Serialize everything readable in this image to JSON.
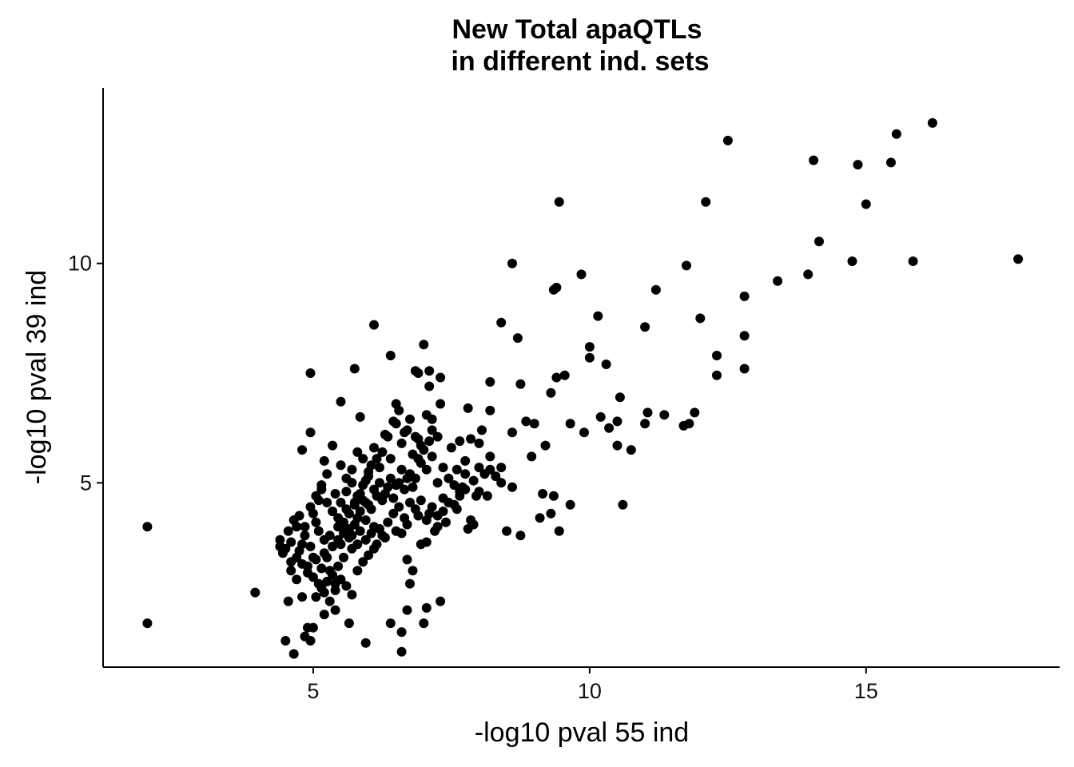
{
  "chart_data": {
    "type": "scatter",
    "title_line1": "New Total apaQTLs",
    "title_line2": "in different ind. sets",
    "xlabel": "-log10 pval 55 ind",
    "ylabel": "-log10 pval 39 ind",
    "xlim": [
      1.2,
      18.5
    ],
    "ylim": [
      0.8,
      14.0
    ],
    "xticks": [
      5,
      10,
      15
    ],
    "yticks": [
      5,
      10
    ],
    "grid": false,
    "point_color": "#000000",
    "points": [
      [
        2.0,
        4.0
      ],
      [
        2.0,
        1.8
      ],
      [
        3.95,
        2.5
      ],
      [
        4.4,
        3.7
      ],
      [
        4.5,
        3.5
      ],
      [
        4.6,
        3.2
      ],
      [
        4.7,
        4.0
      ],
      [
        4.8,
        3.6
      ],
      [
        4.55,
        2.3
      ],
      [
        4.7,
        2.8
      ],
      [
        4.8,
        2.4
      ],
      [
        4.9,
        3.1
      ],
      [
        5.0,
        3.3
      ],
      [
        5.05,
        4.1
      ],
      [
        5.1,
        3.9
      ],
      [
        5.2,
        3.4
      ],
      [
        5.3,
        3.0
      ],
      [
        5.4,
        2.7
      ],
      [
        5.5,
        3.6
      ],
      [
        5.6,
        4.4
      ],
      [
        5.7,
        3.8
      ],
      [
        5.8,
        4.2
      ],
      [
        5.9,
        4.6
      ],
      [
        6.0,
        4.5
      ],
      [
        4.5,
        1.4
      ],
      [
        4.65,
        1.1
      ],
      [
        4.85,
        1.5
      ],
      [
        4.95,
        1.4
      ],
      [
        4.9,
        1.7
      ],
      [
        5.0,
        1.7
      ],
      [
        5.2,
        2.0
      ],
      [
        5.4,
        2.1
      ],
      [
        5.65,
        1.8
      ],
      [
        5.95,
        1.35
      ],
      [
        6.4,
        1.8
      ],
      [
        6.6,
        1.6
      ],
      [
        6.6,
        1.15
      ],
      [
        6.7,
        2.1
      ],
      [
        7.0,
        1.8
      ],
      [
        7.05,
        2.15
      ],
      [
        7.3,
        2.3
      ],
      [
        4.95,
        7.5
      ],
      [
        4.95,
        6.15
      ],
      [
        4.8,
        5.75
      ],
      [
        5.5,
        6.85
      ],
      [
        5.75,
        7.6
      ],
      [
        5.85,
        6.5
      ],
      [
        6.1,
        8.6
      ],
      [
        6.4,
        7.9
      ],
      [
        6.5,
        6.8
      ],
      [
        6.9,
        7.5
      ],
      [
        6.85,
        7.55
      ],
      [
        7.1,
        7.55
      ],
      [
        7.0,
        8.15
      ],
      [
        7.3,
        7.4
      ],
      [
        7.1,
        7.2
      ],
      [
        7.3,
        6.8
      ],
      [
        7.15,
        6.45
      ],
      [
        7.5,
        5.8
      ],
      [
        7.8,
        6.7
      ],
      [
        8.05,
        6.2
      ],
      [
        8.2,
        6.65
      ],
      [
        8.2,
        7.3
      ],
      [
        8.4,
        8.65
      ],
      [
        8.6,
        10.0
      ],
      [
        8.7,
        8.3
      ],
      [
        8.75,
        7.25
      ],
      [
        8.6,
        6.15
      ],
      [
        8.85,
        6.4
      ],
      [
        9.0,
        6.35
      ],
      [
        9.2,
        5.85
      ],
      [
        8.95,
        5.6
      ],
      [
        9.4,
        9.45
      ],
      [
        9.35,
        9.4
      ],
      [
        9.45,
        11.4
      ],
      [
        9.3,
        7.05
      ],
      [
        9.55,
        7.45
      ],
      [
        9.4,
        7.4
      ],
      [
        9.65,
        6.35
      ],
      [
        9.85,
        9.75
      ],
      [
        9.9,
        6.15
      ],
      [
        10.0,
        8.1
      ],
      [
        10.0,
        7.85
      ],
      [
        10.15,
        8.8
      ],
      [
        10.2,
        6.5
      ],
      [
        10.3,
        7.7
      ],
      [
        10.35,
        6.25
      ],
      [
        10.5,
        6.4
      ],
      [
        10.5,
        5.85
      ],
      [
        10.55,
        6.95
      ],
      [
        10.6,
        4.5
      ],
      [
        10.75,
        5.75
      ],
      [
        11.0,
        8.55
      ],
      [
        11.0,
        6.35
      ],
      [
        11.05,
        6.6
      ],
      [
        11.2,
        9.4
      ],
      [
        11.35,
        6.55
      ],
      [
        11.7,
        6.3
      ],
      [
        11.8,
        6.35
      ],
      [
        11.75,
        9.95
      ],
      [
        11.9,
        6.6
      ],
      [
        12.0,
        8.75
      ],
      [
        12.1,
        11.4
      ],
      [
        12.3,
        7.9
      ],
      [
        12.3,
        7.45
      ],
      [
        12.5,
        12.8
      ],
      [
        12.8,
        9.25
      ],
      [
        12.8,
        8.35
      ],
      [
        12.8,
        7.6
      ],
      [
        13.4,
        9.6
      ],
      [
        13.95,
        9.75
      ],
      [
        14.05,
        12.35
      ],
      [
        14.15,
        10.5
      ],
      [
        14.75,
        10.05
      ],
      [
        14.85,
        12.25
      ],
      [
        15.0,
        11.35
      ],
      [
        15.45,
        12.3
      ],
      [
        15.55,
        12.95
      ],
      [
        15.85,
        10.05
      ],
      [
        16.2,
        13.2
      ],
      [
        17.75,
        10.1
      ],
      [
        8.0,
        4.8
      ],
      [
        8.15,
        4.7
      ],
      [
        8.4,
        5.0
      ],
      [
        8.6,
        4.9
      ],
      [
        8.5,
        3.9
      ],
      [
        8.75,
        3.8
      ],
      [
        9.1,
        4.2
      ],
      [
        9.15,
        4.75
      ],
      [
        9.3,
        4.3
      ],
      [
        9.45,
        3.9
      ],
      [
        9.65,
        4.5
      ],
      [
        9.35,
        4.7
      ],
      [
        8.1,
        5.2
      ],
      [
        8.2,
        5.3
      ],
      [
        8.0,
        5.9
      ],
      [
        7.85,
        6.0
      ],
      [
        7.75,
        5.5
      ],
      [
        7.6,
        5.3
      ],
      [
        7.9,
        5.05
      ],
      [
        7.95,
        4.7
      ],
      [
        7.85,
        4.15
      ],
      [
        7.9,
        4.05
      ],
      [
        7.6,
        4.4
      ],
      [
        7.35,
        4.35
      ],
      [
        7.25,
        4.0
      ],
      [
        7.1,
        4.3
      ],
      [
        6.9,
        4.25
      ],
      [
        6.7,
        4.05
      ],
      [
        6.6,
        3.85
      ],
      [
        6.5,
        3.9
      ],
      [
        6.3,
        3.75
      ],
      [
        6.2,
        3.95
      ],
      [
        6.1,
        4.0
      ],
      [
        5.95,
        3.7
      ],
      [
        5.8,
        3.6
      ],
      [
        5.7,
        3.5
      ],
      [
        5.55,
        3.3
      ],
      [
        5.45,
        3.1
      ],
      [
        5.35,
        2.9
      ],
      [
        5.25,
        2.75
      ],
      [
        5.15,
        2.6
      ],
      [
        5.05,
        2.4
      ],
      [
        5.2,
        3.7
      ],
      [
        5.3,
        3.8
      ],
      [
        5.45,
        4.0
      ],
      [
        5.55,
        4.1
      ],
      [
        5.65,
        4.3
      ],
      [
        5.75,
        4.5
      ],
      [
        5.85,
        4.35
      ],
      [
        5.95,
        4.55
      ],
      [
        6.05,
        4.4
      ],
      [
        6.15,
        4.7
      ],
      [
        6.25,
        4.6
      ],
      [
        6.35,
        4.9
      ],
      [
        6.45,
        4.65
      ],
      [
        6.55,
        5.0
      ],
      [
        6.65,
        4.85
      ],
      [
        6.75,
        5.2
      ],
      [
        6.85,
        5.1
      ],
      [
        6.95,
        5.45
      ],
      [
        7.05,
        5.3
      ],
      [
        7.15,
        5.6
      ],
      [
        7.25,
        5.0
      ],
      [
        5.2,
        5.5
      ],
      [
        5.35,
        5.85
      ],
      [
        5.5,
        5.4
      ],
      [
        5.6,
        5.1
      ],
      [
        5.7,
        5.3
      ],
      [
        5.8,
        5.7
      ],
      [
        5.9,
        5.55
      ],
      [
        6.0,
        5.25
      ],
      [
        6.1,
        5.8
      ],
      [
        6.2,
        5.35
      ],
      [
        6.3,
        6.1
      ],
      [
        6.4,
        5.55
      ],
      [
        6.5,
        6.35
      ],
      [
        6.6,
        5.9
      ],
      [
        6.7,
        6.2
      ],
      [
        6.8,
        5.65
      ],
      [
        6.9,
        6.0
      ],
      [
        7.0,
        5.75
      ],
      [
        7.1,
        5.95
      ],
      [
        5.0,
        4.3
      ],
      [
        5.1,
        4.6
      ],
      [
        5.15,
        4.95
      ],
      [
        5.25,
        5.2
      ],
      [
        5.4,
        4.75
      ],
      [
        5.5,
        4.55
      ],
      [
        5.6,
        4.8
      ],
      [
        5.7,
        5.0
      ],
      [
        5.8,
        4.7
      ],
      [
        5.9,
        4.95
      ],
      [
        6.0,
        5.15
      ],
      [
        6.1,
        4.85
      ],
      [
        6.2,
        5.0
      ],
      [
        6.3,
        4.75
      ],
      [
        6.4,
        5.1
      ],
      [
        6.5,
        4.95
      ],
      [
        6.6,
        5.3
      ],
      [
        6.7,
        5.1
      ],
      [
        6.8,
        4.9
      ],
      [
        6.9,
        5.55
      ],
      [
        4.45,
        3.4
      ],
      [
        4.6,
        3.65
      ],
      [
        4.75,
        3.45
      ],
      [
        4.85,
        3.8
      ],
      [
        4.95,
        3.55
      ],
      [
        5.05,
        3.25
      ],
      [
        5.15,
        3.05
      ],
      [
        5.25,
        3.3
      ],
      [
        5.35,
        3.55
      ],
      [
        5.45,
        3.7
      ],
      [
        5.55,
        3.85
      ],
      [
        5.65,
        3.95
      ],
      [
        5.75,
        4.05
      ],
      [
        5.85,
        3.9
      ],
      [
        5.95,
        4.15
      ],
      [
        6.05,
        3.85
      ],
      [
        6.15,
        3.6
      ],
      [
        6.25,
        3.8
      ],
      [
        6.35,
        4.1
      ],
      [
        6.45,
        4.3
      ],
      [
        6.55,
        4.45
      ],
      [
        6.65,
        4.2
      ],
      [
        6.75,
        4.55
      ],
      [
        6.85,
        4.4
      ],
      [
        6.95,
        4.6
      ],
      [
        7.05,
        4.15
      ],
      [
        7.15,
        4.45
      ],
      [
        7.25,
        4.25
      ],
      [
        7.35,
        4.65
      ],
      [
        7.45,
        4.55
      ],
      [
        7.55,
        4.5
      ],
      [
        7.65,
        4.7
      ],
      [
        7.75,
        4.85
      ],
      [
        4.6,
        3.0
      ],
      [
        4.7,
        3.3
      ],
      [
        4.8,
        3.15
      ],
      [
        4.9,
        2.95
      ],
      [
        5.0,
        2.85
      ],
      [
        5.1,
        2.7
      ],
      [
        5.2,
        2.5
      ],
      [
        5.3,
        2.3
      ],
      [
        5.4,
        2.55
      ],
      [
        5.5,
        2.8
      ],
      [
        5.6,
        2.65
      ],
      [
        5.7,
        2.45
      ],
      [
        5.8,
        3.0
      ],
      [
        5.9,
        3.2
      ],
      [
        6.0,
        3.35
      ],
      [
        6.1,
        3.5
      ],
      [
        6.7,
        3.25
      ],
      [
        6.75,
        2.7
      ],
      [
        6.8,
        3.0
      ],
      [
        6.95,
        3.6
      ],
      [
        7.05,
        3.65
      ],
      [
        7.2,
        3.9
      ],
      [
        7.4,
        4.1
      ],
      [
        7.8,
        3.95
      ],
      [
        8.3,
        5.15
      ],
      [
        8.2,
        5.6
      ],
      [
        8.4,
        5.35
      ],
      [
        8.0,
        5.35
      ],
      [
        7.7,
        4.9
      ],
      [
        7.65,
        5.95
      ],
      [
        4.4,
        3.55
      ],
      [
        4.55,
        3.9
      ],
      [
        4.65,
        4.15
      ],
      [
        4.75,
        4.25
      ],
      [
        4.85,
        4.0
      ],
      [
        4.95,
        4.45
      ],
      [
        5.05,
        4.7
      ],
      [
        5.15,
        4.85
      ],
      [
        5.25,
        4.55
      ],
      [
        5.35,
        4.35
      ],
      [
        5.45,
        4.2
      ],
      [
        5.55,
        4.0
      ],
      [
        5.65,
        3.75
      ],
      [
        5.75,
        4.55
      ],
      [
        5.85,
        4.75
      ],
      [
        5.95,
        5.05
      ],
      [
        6.05,
        5.4
      ],
      [
        6.15,
        5.55
      ],
      [
        6.25,
        5.7
      ],
      [
        6.35,
        6.05
      ],
      [
        6.45,
        6.4
      ],
      [
        6.55,
        6.65
      ],
      [
        6.65,
        6.15
      ],
      [
        6.75,
        6.45
      ],
      [
        6.85,
        6.05
      ],
      [
        6.95,
        5.85
      ],
      [
        7.05,
        6.55
      ],
      [
        7.15,
        6.2
      ],
      [
        7.25,
        6.05
      ],
      [
        7.35,
        5.35
      ],
      [
        7.45,
        5.1
      ],
      [
        7.55,
        4.95
      ],
      [
        7.65,
        4.8
      ],
      [
        7.75,
        5.2
      ]
    ]
  }
}
